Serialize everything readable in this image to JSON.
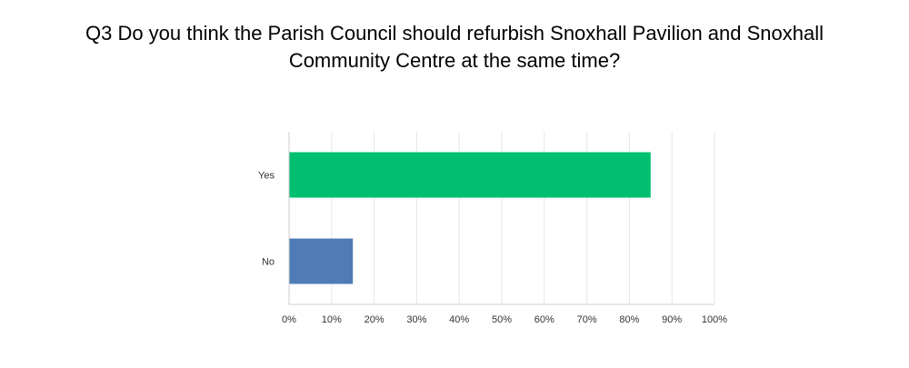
{
  "chart_data": {
    "type": "bar",
    "orientation": "horizontal",
    "title_lines": [
      "Q3 Do you think the Parish Council should refurbish Snoxhall Pavilion and Snoxhall",
      "Community Centre at the same time?"
    ],
    "categories": [
      "Yes",
      "No"
    ],
    "values": [
      85,
      15
    ],
    "bar_colors": [
      "#00bf6f",
      "#507cb6"
    ],
    "xlim": [
      0,
      100
    ],
    "xticks": [
      "0%",
      "10%",
      "20%",
      "30%",
      "40%",
      "50%",
      "60%",
      "70%",
      "80%",
      "90%",
      "100%"
    ],
    "grid": true
  }
}
